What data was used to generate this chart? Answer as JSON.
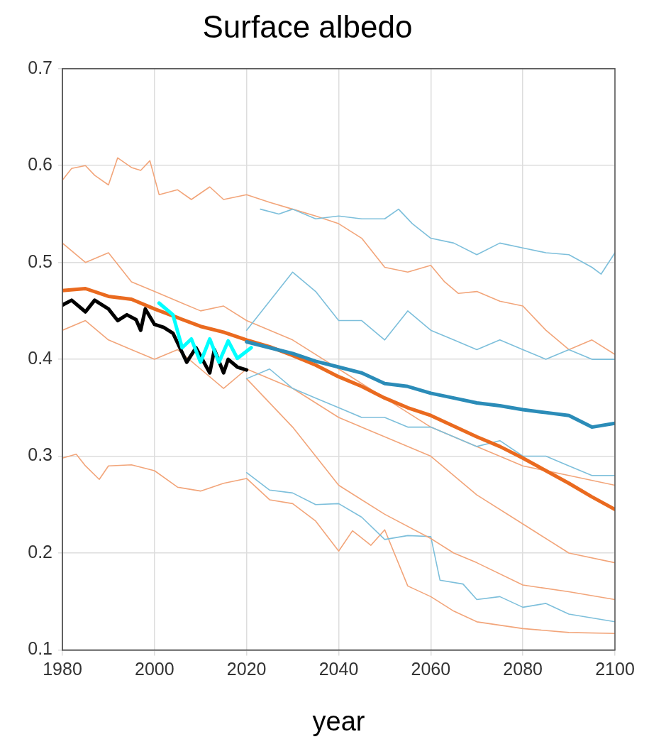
{
  "chart_data": {
    "type": "line",
    "title": "Surface albedo",
    "xlabel": "year",
    "xlim": [
      1980,
      2100
    ],
    "xticks": [
      1980,
      2000,
      2020,
      2040,
      2060,
      2080,
      2100
    ],
    "ylim": [
      0.1,
      0.7
    ],
    "yticks": [
      0.1,
      0.2,
      0.3,
      0.4,
      0.5,
      0.6,
      0.7
    ],
    "grid": true,
    "legend": false,
    "marker": "none",
    "line_style": "solid",
    "series": [
      {
        "color": "#f2a57a",
        "x": [
          1980,
          1982,
          1985,
          1987,
          1990,
          1992,
          1995,
          1997,
          1999,
          2001,
          2005,
          2008,
          2012,
          2015,
          2020,
          2025,
          2030,
          2035,
          2040,
          2045,
          2050,
          2055,
          2060,
          2063,
          2066,
          2070,
          2075,
          2080,
          2085,
          2090,
          2095,
          2100
        ],
        "values": [
          0.585,
          0.597,
          0.6,
          0.59,
          0.58,
          0.608,
          0.598,
          0.595,
          0.605,
          0.57,
          0.575,
          0.565,
          0.578,
          0.565,
          0.57,
          0.562,
          0.555,
          0.548,
          0.54,
          0.525,
          0.495,
          0.49,
          0.497,
          0.48,
          0.468,
          0.47,
          0.46,
          0.455,
          0.43,
          0.41,
          0.42,
          0.405
        ]
      },
      {
        "color": "#7dbfdb",
        "x": [
          2023,
          2027,
          2030,
          2035,
          2040,
          2045,
          2050,
          2053,
          2056,
          2060,
          2065,
          2070,
          2075,
          2080,
          2085,
          2090,
          2095,
          2097,
          2100
        ],
        "values": [
          0.555,
          0.55,
          0.555,
          0.545,
          0.548,
          0.545,
          0.545,
          0.555,
          0.54,
          0.525,
          0.52,
          0.508,
          0.52,
          0.515,
          0.51,
          0.508,
          0.495,
          0.488,
          0.51
        ]
      },
      {
        "color": "#f2a57a",
        "x": [
          1980,
          1983,
          1985,
          1988,
          1990,
          1995,
          2000,
          2005,
          2010,
          2015,
          2020,
          2025,
          2030,
          2035,
          2040,
          2043,
          2047,
          2050,
          2055,
          2060,
          2065,
          2070,
          2080,
          2090,
          2100
        ],
        "values": [
          0.298,
          0.302,
          0.29,
          0.276,
          0.29,
          0.291,
          0.285,
          0.268,
          0.264,
          0.272,
          0.277,
          0.255,
          0.251,
          0.233,
          0.202,
          0.223,
          0.208,
          0.224,
          0.166,
          0.155,
          0.14,
          0.129,
          0.122,
          0.118,
          0.117
        ]
      },
      {
        "color": "#7dbfdb",
        "x": [
          2020,
          2025,
          2030,
          2035,
          2040,
          2045,
          2050,
          2055,
          2060,
          2062,
          2067,
          2070,
          2075,
          2080,
          2085,
          2090,
          2100
        ],
        "values": [
          0.283,
          0.265,
          0.262,
          0.25,
          0.251,
          0.237,
          0.214,
          0.218,
          0.217,
          0.172,
          0.168,
          0.152,
          0.155,
          0.144,
          0.148,
          0.137,
          0.129
        ]
      },
      {
        "color": "#f2a57a",
        "x": [
          2020,
          2030,
          2040,
          2050,
          2060,
          2065,
          2070,
          2080,
          2090,
          2100
        ],
        "values": [
          0.38,
          0.33,
          0.27,
          0.24,
          0.215,
          0.2,
          0.19,
          0.167,
          0.16,
          0.152
        ]
      },
      {
        "color": "#f2a57a",
        "x": [
          1980,
          1985,
          1990,
          1995,
          2000,
          2005,
          2010,
          2015,
          2020,
          2030,
          2040,
          2050,
          2060,
          2070,
          2080,
          2090,
          2100
        ],
        "values": [
          0.52,
          0.5,
          0.51,
          0.48,
          0.47,
          0.46,
          0.45,
          0.455,
          0.44,
          0.42,
          0.39,
          0.36,
          0.33,
          0.31,
          0.29,
          0.28,
          0.27
        ]
      },
      {
        "color": "#f2a57a",
        "x": [
          1980,
          1985,
          1990,
          1995,
          2000,
          2005,
          2010,
          2015,
          2020,
          2030,
          2040,
          2050,
          2060,
          2070,
          2080,
          2090,
          2100
        ],
        "values": [
          0.43,
          0.44,
          0.42,
          0.41,
          0.4,
          0.41,
          0.39,
          0.37,
          0.39,
          0.37,
          0.34,
          0.32,
          0.3,
          0.26,
          0.23,
          0.2,
          0.19
        ]
      },
      {
        "color": "#7dbfdb",
        "x": [
          2020,
          2025,
          2030,
          2035,
          2040,
          2045,
          2050,
          2055,
          2060,
          2065,
          2070,
          2075,
          2080,
          2085,
          2090,
          2095,
          2100
        ],
        "values": [
          0.43,
          0.46,
          0.49,
          0.47,
          0.44,
          0.44,
          0.42,
          0.45,
          0.43,
          0.42,
          0.41,
          0.42,
          0.41,
          0.4,
          0.41,
          0.4,
          0.4
        ]
      },
      {
        "color": "#7dbfdb",
        "x": [
          2020,
          2025,
          2030,
          2035,
          2040,
          2045,
          2050,
          2055,
          2060,
          2065,
          2070,
          2075,
          2080,
          2085,
          2090,
          2095,
          2100
        ],
        "values": [
          0.38,
          0.39,
          0.37,
          0.36,
          0.35,
          0.34,
          0.34,
          0.33,
          0.33,
          0.32,
          0.31,
          0.316,
          0.3,
          0.3,
          0.29,
          0.28,
          0.28
        ]
      },
      {
        "color": "#ea6a1f",
        "x": [
          1980,
          1985,
          1990,
          1995,
          2000,
          2005,
          2010,
          2015,
          2020,
          2025,
          2030,
          2035,
          2040,
          2045,
          2050,
          2055,
          2060,
          2065,
          2070,
          2075,
          2080,
          2085,
          2090,
          2095,
          2100
        ],
        "values": [
          0.471,
          0.473,
          0.465,
          0.462,
          0.452,
          0.443,
          0.434,
          0.428,
          0.42,
          0.413,
          0.404,
          0.394,
          0.382,
          0.372,
          0.36,
          0.35,
          0.342,
          0.331,
          0.32,
          0.31,
          0.298,
          0.285,
          0.272,
          0.258,
          0.245
        ]
      },
      {
        "color": "#2b8cb8",
        "x": [
          2020,
          2025,
          2030,
          2035,
          2040,
          2045,
          2050,
          2055,
          2060,
          2065,
          2070,
          2075,
          2080,
          2085,
          2090,
          2095,
          2100
        ],
        "values": [
          0.418,
          0.412,
          0.406,
          0.398,
          0.392,
          0.386,
          0.375,
          0.372,
          0.365,
          0.36,
          0.355,
          0.352,
          0.348,
          0.345,
          0.342,
          0.33,
          0.334
        ]
      },
      {
        "color": "#000000",
        "x": [
          1980,
          1982,
          1985,
          1987,
          1990,
          1992,
          1994,
          1996,
          1997,
          1998,
          2000,
          2002,
          2004,
          2006,
          2007,
          2009,
          2012,
          2013,
          2015,
          2016,
          2018,
          2020
        ],
        "values": [
          0.456,
          0.461,
          0.449,
          0.461,
          0.452,
          0.44,
          0.446,
          0.441,
          0.43,
          0.452,
          0.436,
          0.433,
          0.427,
          0.407,
          0.397,
          0.412,
          0.386,
          0.41,
          0.386,
          0.4,
          0.392,
          0.389
        ]
      },
      {
        "color": "#00ffff",
        "x": [
          2001,
          2004,
          2006,
          2008,
          2010,
          2012,
          2014,
          2016,
          2018,
          2021
        ],
        "values": [
          0.458,
          0.446,
          0.412,
          0.421,
          0.397,
          0.421,
          0.397,
          0.419,
          0.401,
          0.412
        ]
      }
    ]
  }
}
